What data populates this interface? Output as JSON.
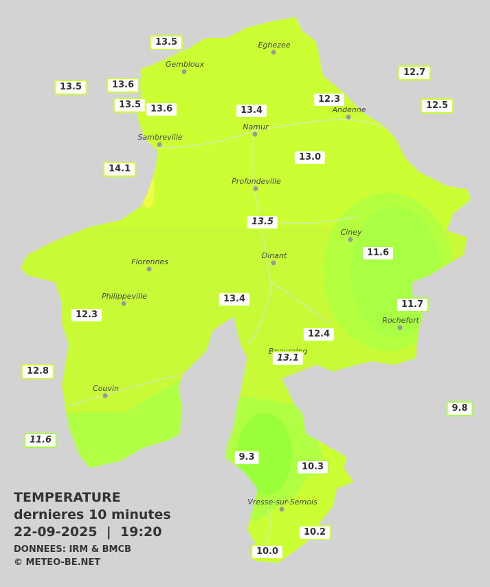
{
  "title": {
    "line1": "TEMPERATURE",
    "line2": "dernieres 10 minutes",
    "line3": "22-09-2025  |  19:20",
    "source": "DONNEES: IRM & BMCB",
    "copyright": "© METEO-BE.NET"
  },
  "cities": [
    "Eghezee",
    "Gembloux",
    "Andenne",
    "Namur",
    "Sambreville",
    "Profondeville",
    "Ciney",
    "Florennes",
    "Dinant",
    "Philippeville",
    "Rochefort",
    "Beauraing",
    "Couvin",
    "Vresse-sur-Semois"
  ],
  "stations": [
    {
      "label": "13.5"
    },
    {
      "label": "13.5"
    },
    {
      "label": "13.6"
    },
    {
      "label": "13.5"
    },
    {
      "label": "13.6"
    },
    {
      "label": "13.4"
    },
    {
      "label": "12.3"
    },
    {
      "label": "12.7"
    },
    {
      "label": "12.5"
    },
    {
      "label": "14.1"
    },
    {
      "label": "13.0"
    },
    {
      "label": "13.5",
      "italic": true
    },
    {
      "label": "11.6"
    },
    {
      "label": "13.4"
    },
    {
      "label": "11.7"
    },
    {
      "label": "12.3"
    },
    {
      "label": "12.4"
    },
    {
      "label": "13.1",
      "italic": true
    },
    {
      "label": "12.8"
    },
    {
      "label": "9.8"
    },
    {
      "label": "11.6",
      "italic": true
    },
    {
      "label": "9.3"
    },
    {
      "label": "10.3"
    },
    {
      "label": "10.2"
    },
    {
      "label": "10.0"
    }
  ]
}
